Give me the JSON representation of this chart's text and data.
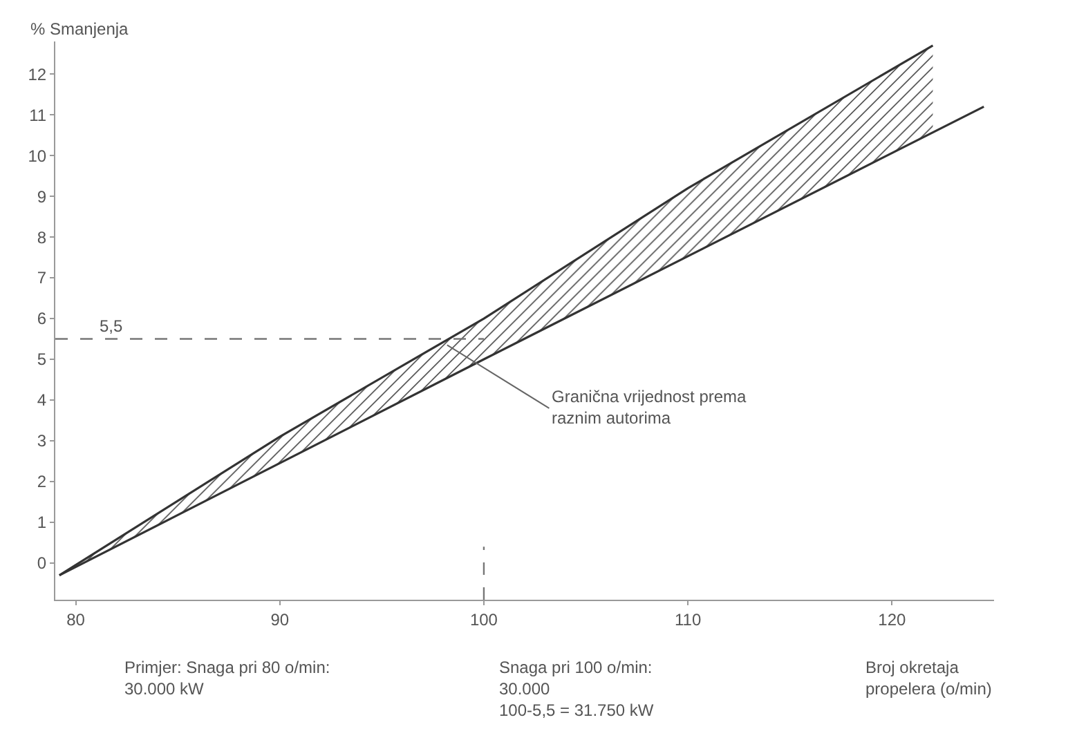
{
  "chart_data": {
    "type": "line",
    "ylabel": "% Smanjenja",
    "xlabel": "Broj okretaja\npropelera (o/min)",
    "series": [
      {
        "color": "#333333",
        "x": [
          79.2,
          90,
          100,
          110,
          122
        ],
        "values": [
          -0.3,
          3.1,
          6.0,
          9.2,
          12.7
        ],
        "lower": [
          -0.3,
          2.44,
          5.0,
          7.52,
          10.57
        ],
        "upper": [
          -0.3,
          3.1,
          6.0,
          9.2,
          12.7
        ]
      },
      {
        "color": "#333333",
        "x": [
          79.2,
          100,
          124.5
        ],
        "values": [
          -0.3,
          5.0,
          11.2
        ]
      }
    ],
    "xlim": [
      79,
      125
    ],
    "ylim": [
      -0.9,
      12.8
    ],
    "xticks": [
      80,
      90,
      100,
      110,
      120
    ],
    "yticks": [
      0,
      1,
      2,
      3,
      4,
      5,
      6,
      7,
      8,
      9,
      10,
      11,
      12
    ],
    "marker": "none",
    "line_style": "solid",
    "ref_lines": [
      {
        "axis": "y",
        "value": 5.5,
        "label": "5,5",
        "line_style": "dashed",
        "color": "#777777"
      },
      {
        "axis": "x",
        "value": 100,
        "line_style": "dashed",
        "color": "#777777"
      }
    ],
    "annotations": [
      {
        "text": "Granična vrijednost prema\nraznim autorima",
        "x": 98.2,
        "y": 5.35
      },
      "Primjer: Snaga pri 80 o/min:\n30.000 kW",
      "Snaga pri 100 o/min:\n30.000\n100-5,5 = 31.750 kW"
    ]
  }
}
